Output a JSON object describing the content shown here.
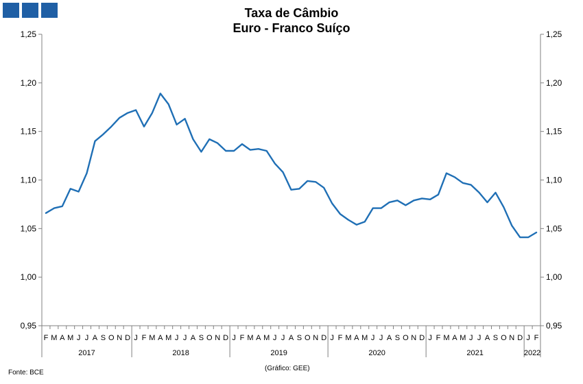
{
  "title_line1": "Taxa de Câmbio",
  "title_line2": "Euro - Franco Suíço",
  "source": "Fonte: BCE",
  "credit": "(Gráfico: GEE)",
  "colors": {
    "line": "#1f6fb5",
    "logo": "#1f5fa5",
    "axis": "#808080"
  },
  "chart_data": {
    "type": "line",
    "title": "Taxa de Câmbio Euro - Franco Suíço",
    "ylim": [
      0.95,
      1.25
    ],
    "yticks": [
      0.95,
      1.0,
      1.05,
      1.1,
      1.15,
      1.2,
      1.25
    ],
    "ytick_labels": [
      "0,95",
      "1,00",
      "1,05",
      "1,10",
      "1,15",
      "1,20",
      "1,25"
    ],
    "month_labels": [
      "F",
      "M",
      "A",
      "M",
      "J",
      "J",
      "A",
      "S",
      "O",
      "N",
      "D",
      "J",
      "F",
      "M",
      "A",
      "M",
      "J",
      "J",
      "A",
      "S",
      "O",
      "N",
      "D",
      "J",
      "F",
      "M",
      "A",
      "M",
      "J",
      "J",
      "A",
      "S",
      "O",
      "N",
      "D",
      "J",
      "F",
      "M",
      "A",
      "M",
      "J",
      "J",
      "A",
      "S",
      "O",
      "N",
      "D",
      "J",
      "F",
      "M",
      "A",
      "M",
      "J",
      "J",
      "A",
      "S",
      "O",
      "N",
      "D",
      "J",
      "F"
    ],
    "years": [
      {
        "label": "2017",
        "start": 0,
        "end": 10
      },
      {
        "label": "2018",
        "start": 11,
        "end": 22
      },
      {
        "label": "2019",
        "start": 23,
        "end": 34
      },
      {
        "label": "2020",
        "start": 35,
        "end": 46
      },
      {
        "label": "2021",
        "start": 47,
        "end": 58
      },
      {
        "label": "2022",
        "start": 59,
        "end": 60
      }
    ],
    "series": [
      {
        "values": [
          1.066,
          1.071,
          1.073,
          1.091,
          1.088,
          1.107,
          1.14,
          1.147,
          1.155,
          1.164,
          1.169,
          1.172,
          1.155,
          1.169,
          1.189,
          1.178,
          1.157,
          1.163,
          1.142,
          1.129,
          1.142,
          1.138,
          1.13,
          1.13,
          1.137,
          1.131,
          1.132,
          1.13,
          1.117,
          1.108,
          1.09,
          1.091,
          1.099,
          1.098,
          1.092,
          1.076,
          1.065,
          1.059,
          1.054,
          1.057,
          1.071,
          1.071,
          1.077,
          1.079,
          1.074,
          1.079,
          1.081,
          1.08,
          1.085,
          1.107,
          1.103,
          1.097,
          1.095,
          1.087,
          1.077,
          1.087,
          1.072,
          1.053,
          1.041,
          1.041,
          1.046
        ]
      }
    ]
  }
}
